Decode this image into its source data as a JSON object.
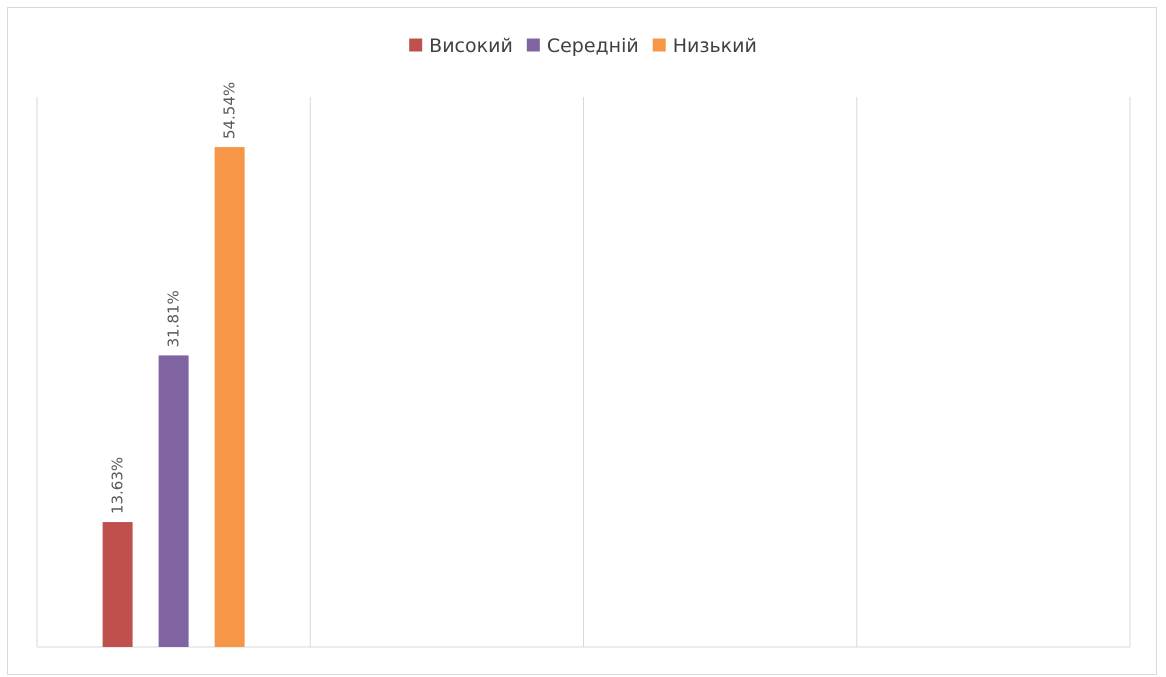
{
  "chart_data": {
    "type": "bar",
    "title": "",
    "xlabel": "",
    "ylabel": "",
    "categories": [
      "",
      "",
      "",
      ""
    ],
    "series": [
      {
        "name": "Високий",
        "color": "#c0504d",
        "values": [
          13.63,
          null,
          null,
          null
        ],
        "labels": [
          "13.63%",
          "",
          "",
          ""
        ]
      },
      {
        "name": "Середній",
        "color": "#8064a2",
        "values": [
          31.81,
          null,
          null,
          null
        ],
        "labels": [
          "31.81%",
          "",
          "",
          ""
        ]
      },
      {
        "name": "Низький",
        "color": "#f79646",
        "values": [
          54.54,
          null,
          null,
          null
        ],
        "labels": [
          "54.54%",
          "",
          "",
          ""
        ]
      }
    ],
    "ylim": [
      0,
      60
    ],
    "legend": "top-center",
    "grid": "vertical category separators",
    "data_label_orientation": "rotated-vertical"
  }
}
